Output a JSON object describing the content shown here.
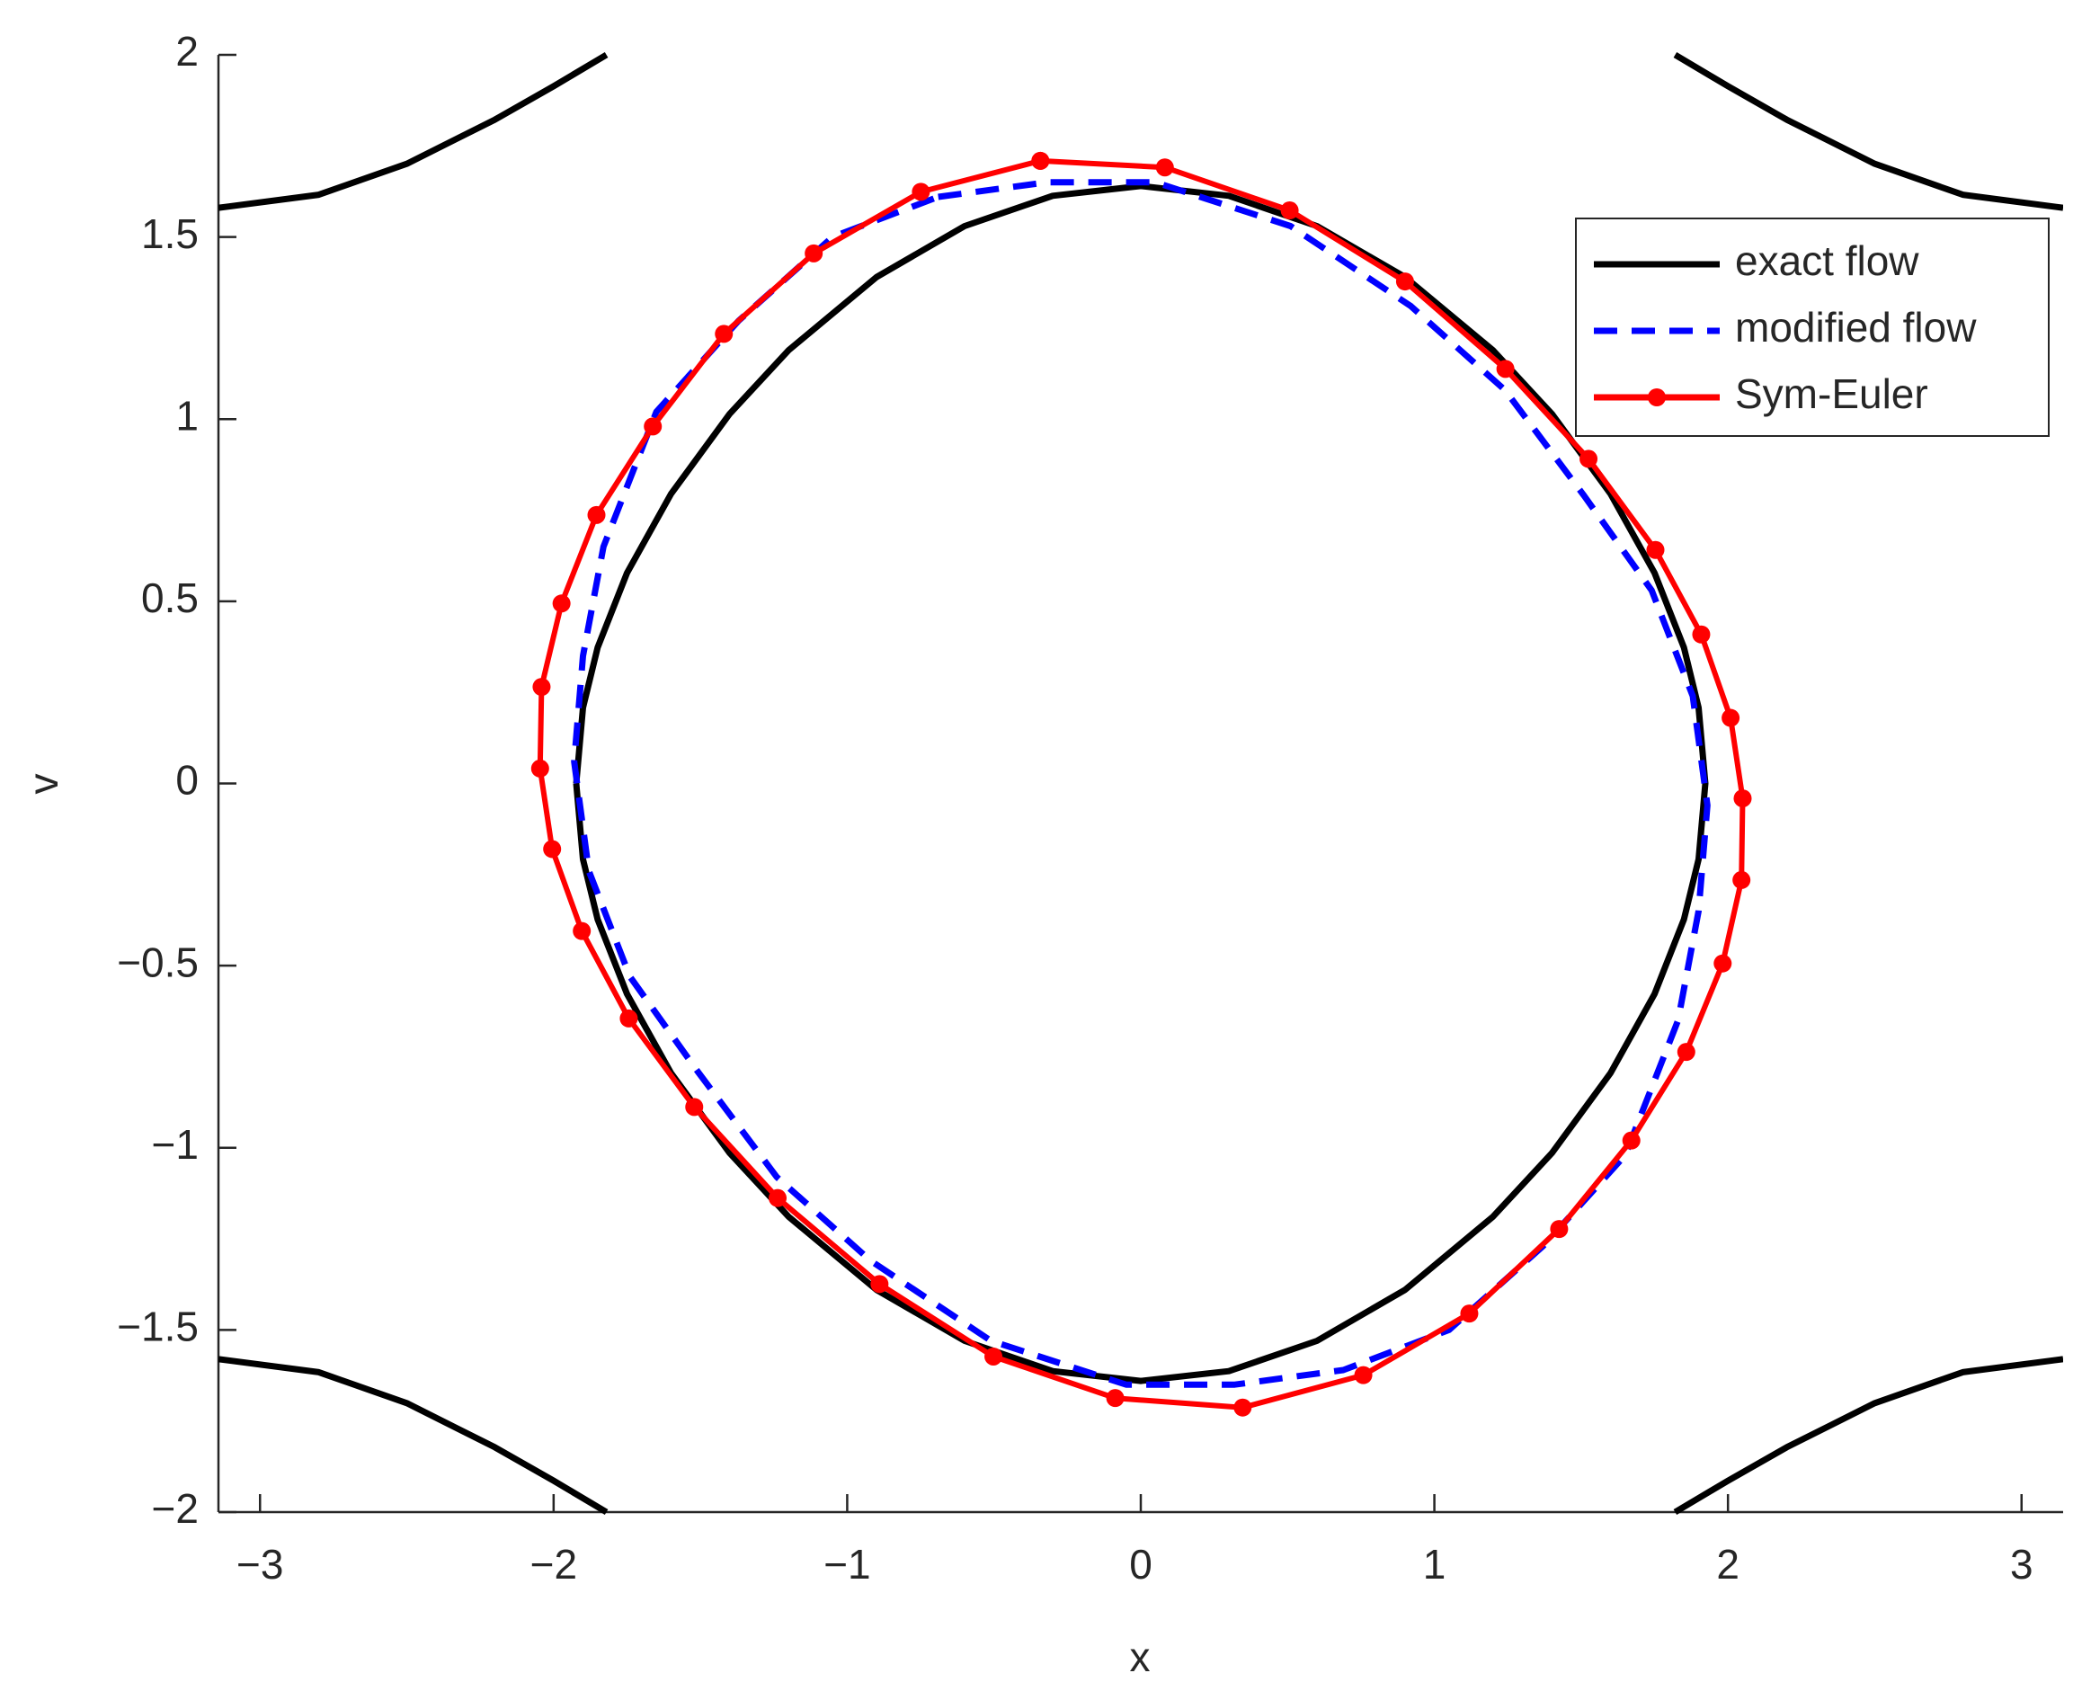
{
  "chart_data": {
    "type": "line",
    "xlabel": "x",
    "ylabel": "v",
    "xlim": [
      -3.1416,
      3.1416
    ],
    "ylim": [
      -2,
      2
    ],
    "xticks": [
      {
        "value": -3,
        "label": "−3"
      },
      {
        "value": -2,
        "label": "−2"
      },
      {
        "value": -1,
        "label": "−1"
      },
      0,
      1,
      2,
      3
    ],
    "yticks": [
      {
        "value": -2,
        "label": "−2"
      },
      {
        "value": -1.5,
        "label": "−1.5"
      },
      {
        "value": -1,
        "label": "−1"
      },
      {
        "value": -0.5,
        "label": "−0.5"
      },
      0,
      0.5,
      1,
      1.5,
      2
    ],
    "legend": "upper right",
    "series": [
      {
        "name": "exact flow",
        "color": "#000000",
        "style": "solid",
        "x": [
          -1.923,
          -1.9,
          -1.85,
          -1.75,
          -1.6,
          -1.4,
          -1.2,
          -0.9,
          -0.6,
          -0.3,
          0,
          0.3,
          0.6,
          0.9,
          1.2,
          1.4,
          1.6,
          1.75,
          1.85,
          1.9,
          1.923,
          1.9,
          1.85,
          1.75,
          1.6,
          1.4,
          1.2,
          0.9,
          0.6,
          0.3,
          0,
          -0.3,
          -0.6,
          -0.9,
          -1.2,
          -1.4,
          -1.6,
          -1.75,
          -1.85,
          -1.9,
          -1.923,
          null,
          -3.1416,
          -2.8,
          -2.5,
          -2.2,
          -2.0,
          -1.82,
          null,
          1.82,
          2.0,
          2.2,
          2.5,
          2.8,
          3.1416,
          null,
          -3.1416,
          -2.8,
          -2.5,
          -2.2,
          -2.0,
          -1.82,
          null,
          1.82,
          2.0,
          2.2,
          2.5,
          2.8,
          3.1416
        ],
        "values": [
          0,
          0.208,
          0.373,
          0.578,
          0.795,
          1.015,
          1.189,
          1.39,
          1.53,
          1.613,
          1.64,
          1.613,
          1.53,
          1.39,
          1.189,
          1.015,
          0.795,
          0.578,
          0.373,
          0.208,
          0,
          -0.208,
          -0.373,
          -0.578,
          -0.795,
          -1.015,
          -1.189,
          -1.39,
          -1.53,
          -1.613,
          -1.64,
          -1.613,
          -1.53,
          -1.39,
          -1.189,
          -1.015,
          -0.795,
          -0.578,
          -0.373,
          -0.208,
          0,
          null,
          1.58,
          1.616,
          1.701,
          1.822,
          1.914,
          2.0,
          null,
          2.0,
          1.914,
          1.822,
          1.701,
          1.616,
          1.58,
          null,
          -1.58,
          -1.616,
          -1.701,
          -1.822,
          -1.914,
          -2.0,
          null,
          -2.0,
          -1.914,
          -1.822,
          -1.701,
          -1.616,
          -1.58
        ]
      },
      {
        "name": "modified flow",
        "color": "#0000ff",
        "style": "dashed",
        "x": [
          -0.69,
          -0.32,
          0.05,
          0.51,
          0.92,
          1.24,
          1.51,
          1.74,
          1.88,
          1.93,
          1.9,
          1.83,
          1.65,
          1.37,
          1.05,
          0.69,
          0.32,
          -0.05,
          -0.51,
          -0.92,
          -1.24,
          -1.51,
          -1.74,
          -1.88,
          -1.93,
          -1.9,
          -1.83,
          -1.65,
          -1.37,
          -1.05,
          -0.69
        ],
        "values": [
          1.61,
          1.65,
          1.65,
          1.53,
          1.31,
          1.08,
          0.79,
          0.53,
          0.24,
          -0.06,
          -0.35,
          -0.65,
          -1.02,
          -1.27,
          -1.5,
          -1.61,
          -1.65,
          -1.65,
          -1.53,
          -1.31,
          -1.08,
          -0.79,
          -0.53,
          -0.24,
          0.06,
          0.35,
          0.65,
          1.02,
          1.27,
          1.5,
          1.61
        ]
      },
      {
        "name": "Sym-Euler",
        "color": "#ff0000",
        "style": "solid",
        "marker": "circle",
        "x": [
          -0.342,
          0.082,
          0.507,
          0.9,
          1.242,
          1.525,
          1.753,
          1.909,
          2.009,
          2.05,
          2.046,
          1.982,
          1.858,
          1.671,
          1.425,
          1.119,
          0.758,
          0.347,
          -0.087,
          -0.502,
          -0.89,
          -1.237,
          -1.521,
          -1.744,
          -1.904,
          -2.005,
          -2.046,
          -2.041,
          -1.973,
          -1.854,
          -1.662,
          -1.42,
          -1.114,
          -0.749,
          -0.342
        ],
        "values": [
          1.709,
          1.691,
          1.573,
          1.378,
          1.138,
          0.891,
          0.641,
          0.409,
          0.18,
          -0.041,
          -0.265,
          -0.494,
          -0.737,
          -0.98,
          -1.223,
          -1.455,
          -1.624,
          -1.713,
          -1.687,
          -1.573,
          -1.374,
          -1.138,
          -0.888,
          -0.645,
          -0.405,
          -0.18,
          0.041,
          0.265,
          0.494,
          0.737,
          0.98,
          1.234,
          1.455,
          1.624,
          1.709
        ]
      }
    ]
  }
}
